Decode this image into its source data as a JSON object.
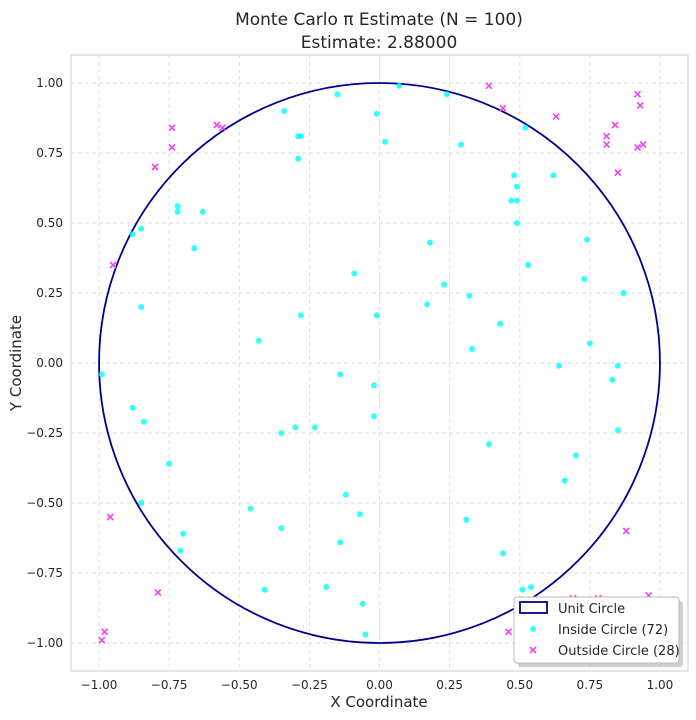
{
  "chart_data": {
    "type": "scatter",
    "title": "Monte Carlo π Estimate (N = 100)",
    "subtitle": "Estimate: 2.88000",
    "xlabel": "X Coordinate",
    "ylabel": "Y Coordinate",
    "xlim": [
      -1.1,
      1.1
    ],
    "ylim": [
      -1.1,
      1.1
    ],
    "xticks": [
      -1.0,
      -0.75,
      -0.5,
      -0.25,
      0.0,
      0.25,
      0.5,
      0.75,
      1.0
    ],
    "yticks": [
      -1.0,
      -0.75,
      -0.5,
      -0.25,
      0.0,
      0.25,
      0.5,
      0.75,
      1.0
    ],
    "xtick_labels": [
      "−1.00",
      "−0.75",
      "−0.50",
      "−0.25",
      "0.00",
      "0.25",
      "0.50",
      "0.75",
      "1.00"
    ],
    "ytick_labels": [
      "−1.00",
      "−0.75",
      "−0.50",
      "−0.25",
      "0.00",
      "0.25",
      "0.50",
      "0.75",
      "1.00"
    ],
    "grid": true,
    "legend_position": "bottom-right",
    "circle": {
      "name": "Unit Circle",
      "radius": 1.0,
      "color": "#00008b"
    },
    "series": [
      {
        "name": "Inside Circle (72)",
        "marker": "circle",
        "color": "#00ffff",
        "points": [
          [
            0.07,
            0.99
          ],
          [
            0.24,
            0.96
          ],
          [
            -0.15,
            0.96
          ],
          [
            -0.34,
            0.9
          ],
          [
            -0.01,
            0.89
          ],
          [
            -0.29,
            0.81
          ],
          [
            -0.28,
            0.81
          ],
          [
            0.02,
            0.79
          ],
          [
            0.29,
            0.78
          ],
          [
            -0.29,
            0.73
          ],
          [
            0.52,
            0.84
          ],
          [
            0.48,
            0.67
          ],
          [
            0.62,
            0.67
          ],
          [
            0.49,
            0.63
          ],
          [
            0.47,
            0.58
          ],
          [
            0.49,
            0.58
          ],
          [
            0.49,
            0.5
          ],
          [
            -0.72,
            0.56
          ],
          [
            -0.72,
            0.54
          ],
          [
            -0.63,
            0.54
          ],
          [
            -0.85,
            0.48
          ],
          [
            -0.88,
            0.46
          ],
          [
            -0.66,
            0.41
          ],
          [
            0.18,
            0.43
          ],
          [
            0.74,
            0.44
          ],
          [
            -0.09,
            0.32
          ],
          [
            0.53,
            0.35
          ],
          [
            0.73,
            0.3
          ],
          [
            0.23,
            0.28
          ],
          [
            0.32,
            0.24
          ],
          [
            0.87,
            0.25
          ],
          [
            -0.85,
            0.2
          ],
          [
            0.17,
            0.21
          ],
          [
            -0.28,
            0.17
          ],
          [
            -0.01,
            0.17
          ],
          [
            0.43,
            0.14
          ],
          [
            -0.43,
            0.08
          ],
          [
            0.33,
            0.05
          ],
          [
            0.75,
            0.07
          ],
          [
            0.64,
            -0.01
          ],
          [
            0.85,
            -0.01
          ],
          [
            -0.99,
            -0.04
          ],
          [
            -0.14,
            -0.04
          ],
          [
            -0.02,
            -0.08
          ],
          [
            0.83,
            -0.06
          ],
          [
            -0.88,
            -0.16
          ],
          [
            -0.84,
            -0.21
          ],
          [
            -0.02,
            -0.19
          ],
          [
            -0.23,
            -0.23
          ],
          [
            -0.3,
            -0.23
          ],
          [
            -0.35,
            -0.25
          ],
          [
            0.39,
            -0.29
          ],
          [
            0.85,
            -0.24
          ],
          [
            0.7,
            -0.33
          ],
          [
            -0.75,
            -0.36
          ],
          [
            0.66,
            -0.42
          ],
          [
            -0.85,
            -0.5
          ],
          [
            -0.12,
            -0.47
          ],
          [
            -0.46,
            -0.52
          ],
          [
            -0.07,
            -0.54
          ],
          [
            0.31,
            -0.56
          ],
          [
            -0.7,
            -0.61
          ],
          [
            -0.35,
            -0.59
          ],
          [
            -0.14,
            -0.64
          ],
          [
            -0.71,
            -0.67
          ],
          [
            0.44,
            -0.68
          ],
          [
            -0.41,
            -0.81
          ],
          [
            -0.19,
            -0.8
          ],
          [
            0.54,
            -0.8
          ],
          [
            0.51,
            -0.81
          ],
          [
            -0.06,
            -0.86
          ],
          [
            -0.05,
            -0.97
          ]
        ]
      },
      {
        "name": "Outside Circle (28)",
        "marker": "x",
        "color": "#ee44ee",
        "points": [
          [
            0.39,
            0.99
          ],
          [
            0.44,
            0.91
          ],
          [
            -0.74,
            0.84
          ],
          [
            -0.58,
            0.85
          ],
          [
            -0.56,
            0.84
          ],
          [
            -0.74,
            0.77
          ],
          [
            -0.8,
            0.7
          ],
          [
            0.63,
            0.88
          ],
          [
            0.81,
            0.81
          ],
          [
            0.84,
            0.85
          ],
          [
            0.81,
            0.78
          ],
          [
            0.92,
            0.96
          ],
          [
            0.93,
            0.92
          ],
          [
            0.92,
            0.77
          ],
          [
            0.94,
            0.78
          ],
          [
            0.85,
            0.68
          ],
          [
            -0.95,
            0.35
          ],
          [
            -0.96,
            -0.55
          ],
          [
            0.88,
            -0.6
          ],
          [
            -0.79,
            -0.82
          ],
          [
            -0.98,
            -0.96
          ],
          [
            -0.99,
            -0.99
          ],
          [
            0.46,
            -0.96
          ],
          [
            0.69,
            -0.84
          ],
          [
            0.78,
            -0.84
          ],
          [
            0.96,
            -0.83
          ],
          [
            0.86,
            -0.9
          ],
          [
            0.94,
            -0.92
          ]
        ]
      }
    ]
  }
}
